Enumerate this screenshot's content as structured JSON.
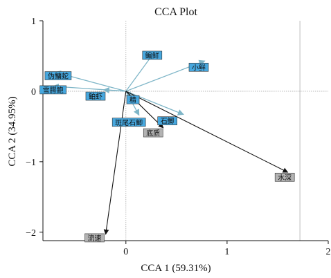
{
  "chart_data": {
    "type": "scatter",
    "title": "CCA Plot",
    "xlabel": "CCA 1 (59.31%)",
    "ylabel": "CCA 2 (34.95%)",
    "xlim": [
      -0.82,
      2.0
    ],
    "ylim": [
      -2.12,
      1.0
    ],
    "xticks": [
      0,
      1,
      2
    ],
    "yticks": [
      1,
      0,
      -1,
      -2
    ],
    "species": [
      {
        "name": "伪鳙蛇",
        "x": -0.67,
        "y": 0.22,
        "arrow": [
          -0.7,
          0.27
        ]
      },
      {
        "name": "雪腭鲍",
        "x": -0.72,
        "y": 0.02,
        "arrow": [
          -0.72,
          0.07
        ]
      },
      {
        "name": "鲌虾",
        "x": -0.3,
        "y": -0.07,
        "arrow": [
          -0.22,
          0.02
        ]
      },
      {
        "name": "鳊鲜",
        "x": 0.26,
        "y": 0.51,
        "arrow": [
          0.28,
          0.55
        ]
      },
      {
        "name": "小鲜",
        "x": 0.72,
        "y": 0.34,
        "arrow": [
          0.78,
          0.43
        ]
      },
      {
        "name": "精",
        "x": 0.07,
        "y": -0.12,
        "arrow": [
          0.06,
          -0.09
        ]
      },
      {
        "name": "石鲫",
        "x": 0.41,
        "y": -0.42,
        "arrow": [
          0.57,
          -0.33
        ]
      },
      {
        "name": "斑尾石鲫",
        "x": 0.03,
        "y": -0.44,
        "arrow": [
          0.13,
          -0.34
        ]
      }
    ],
    "environment": [
      {
        "name": "底质",
        "x": 0.27,
        "y": -0.59,
        "arrow": [
          0.37,
          -0.52
        ]
      },
      {
        "name": "水深",
        "x": 1.57,
        "y": -1.22,
        "arrow": [
          1.6,
          -1.15
        ]
      },
      {
        "name": "流速",
        "x": -0.31,
        "y": -2.08,
        "arrow": [
          -0.2,
          -2.03
        ]
      }
    ],
    "origin": [
      0,
      0
    ],
    "reference_lines": {
      "horizontal": 0,
      "vertical": [
        0,
        1.72
      ]
    },
    "grid": false,
    "colors": {
      "species_arrow": "#7fb6c8",
      "species_label_bg": "#47a8df",
      "environment_arrow": "#111111",
      "environment_label_bg": "#b3b3b3",
      "reference_line": "#aaaaaa"
    }
  }
}
